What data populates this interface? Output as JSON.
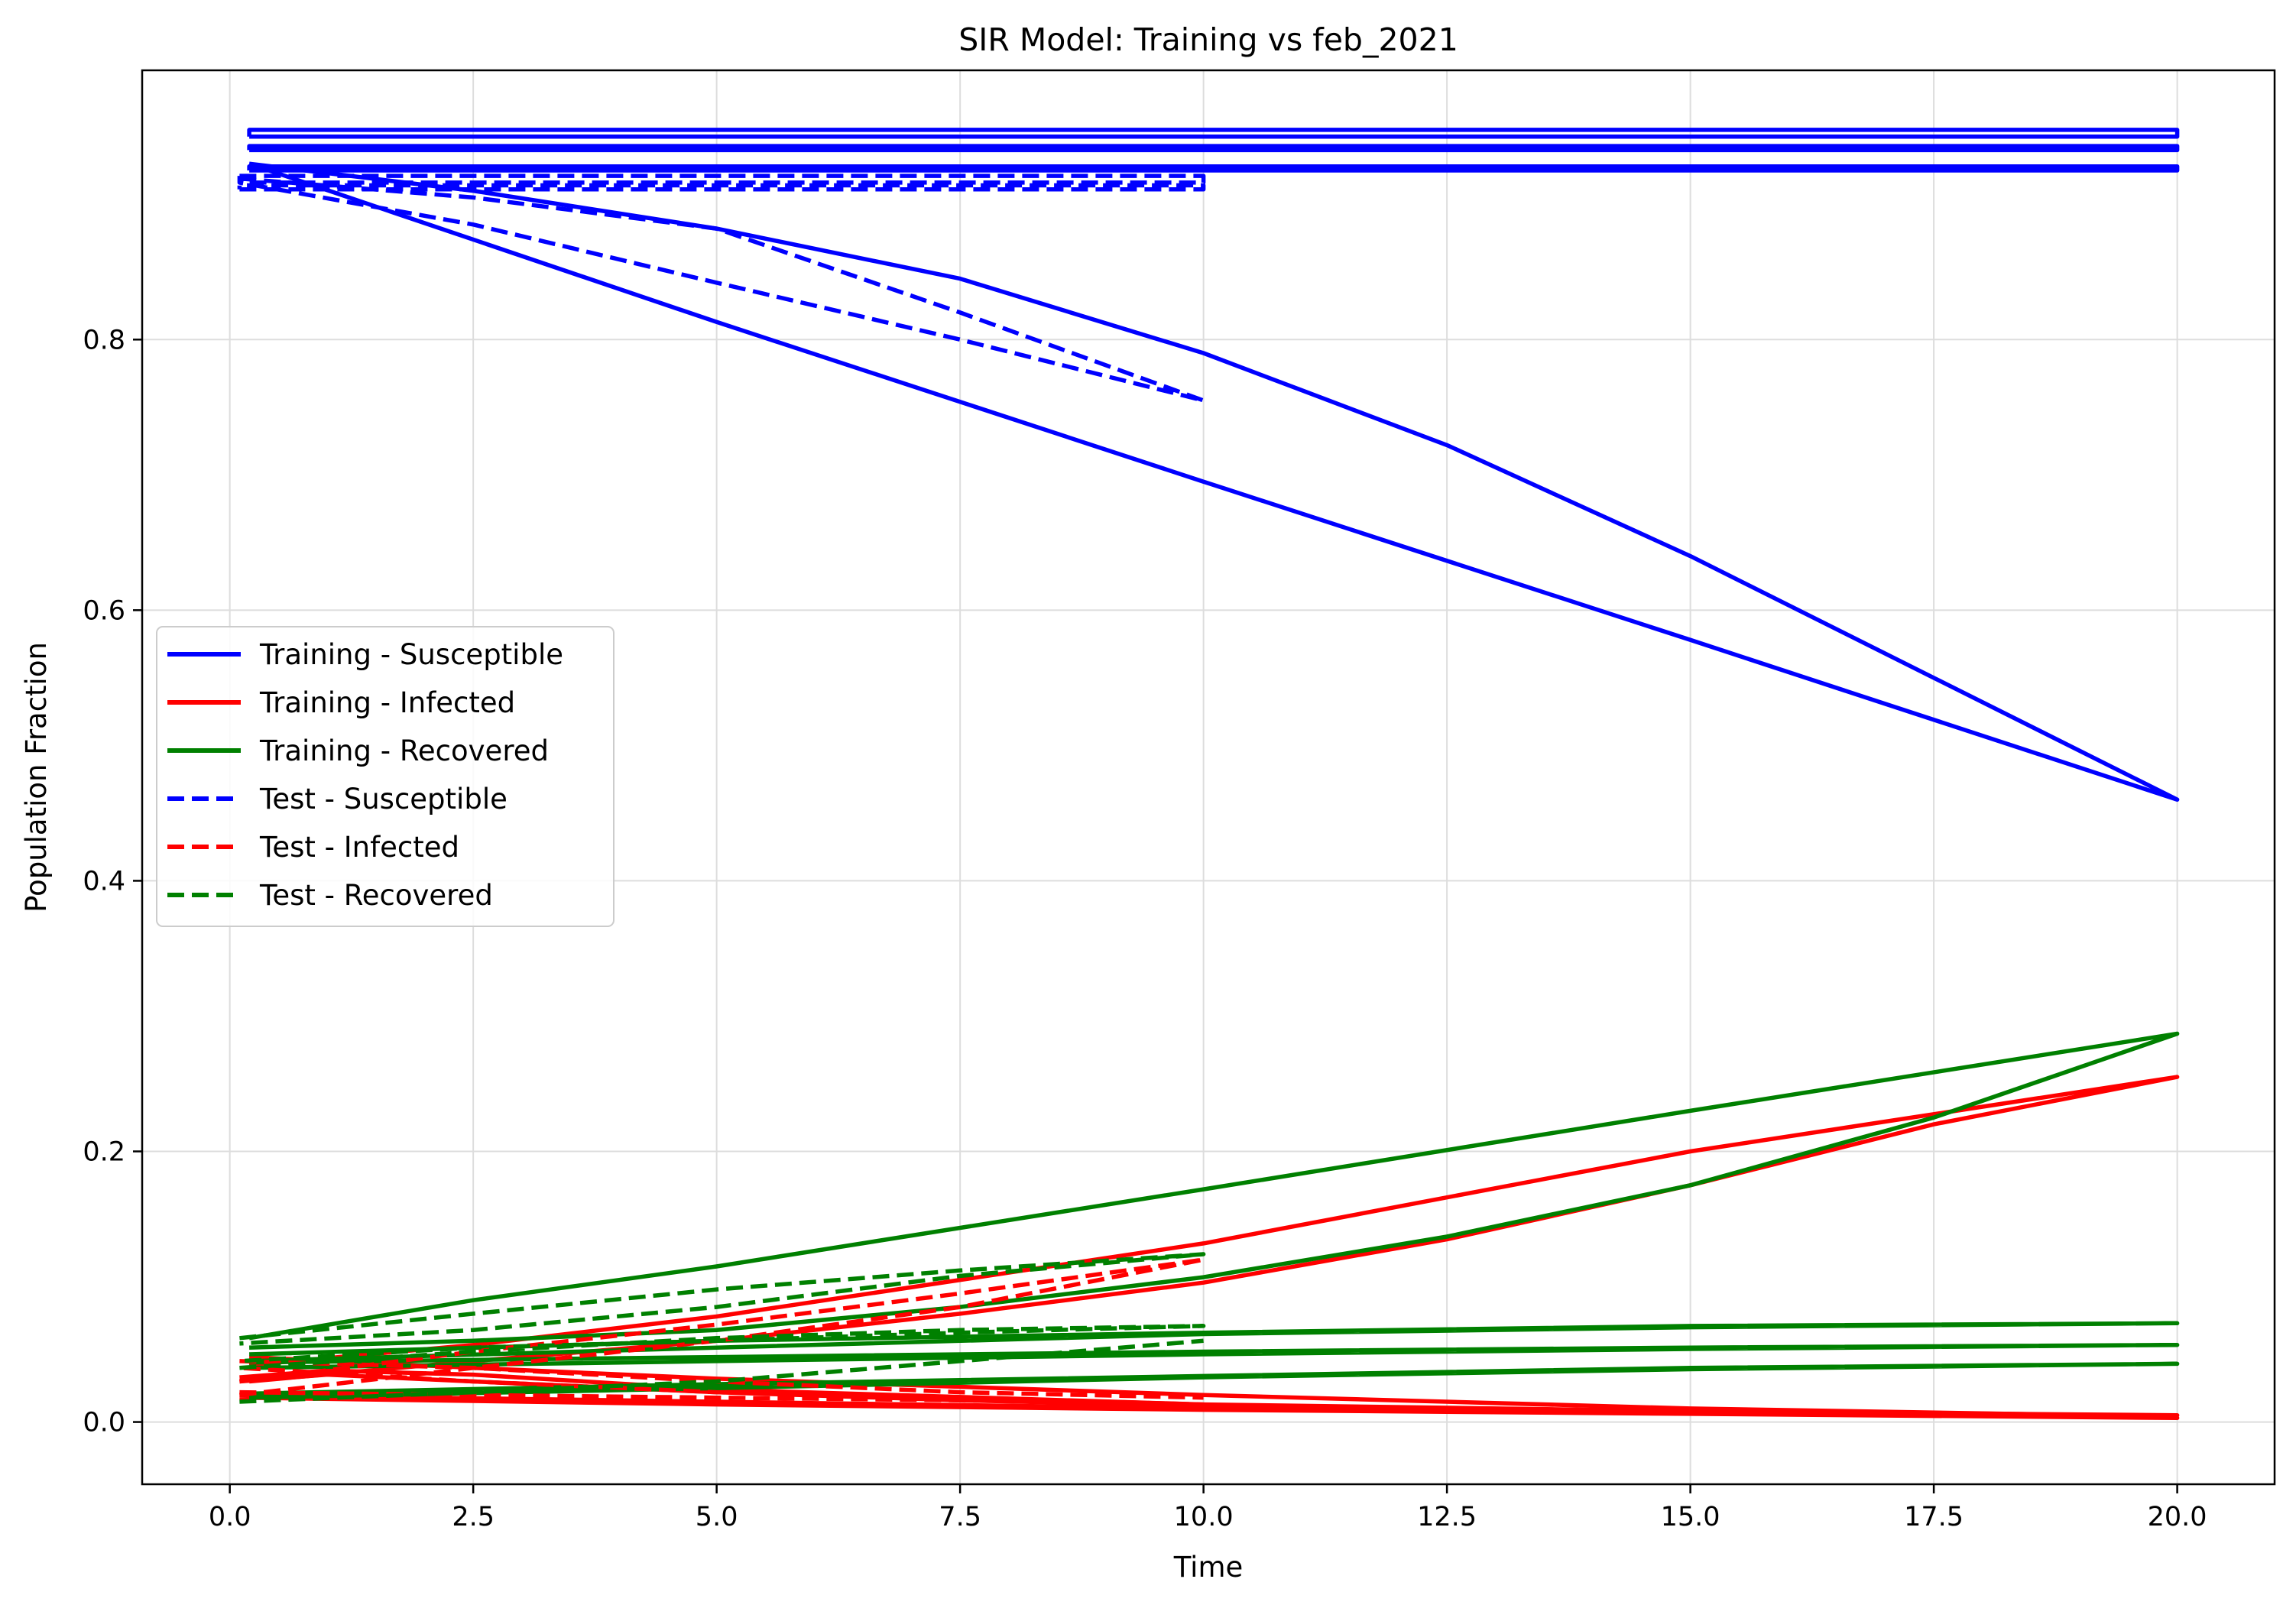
{
  "chart_data": {
    "type": "line",
    "title": "SIR Model: Training vs feb_2021",
    "xlabel": "Time",
    "ylabel": "Population Fraction",
    "xlim": [
      -0.9,
      21.0
    ],
    "ylim": [
      -0.046,
      0.999
    ],
    "xticks": [
      "0.0",
      "2.5",
      "5.0",
      "7.5",
      "10.0",
      "12.5",
      "15.0",
      "17.5",
      "20.0"
    ],
    "xtick_values": [
      0,
      2.5,
      5,
      7.5,
      10,
      12.5,
      15,
      17.5,
      20
    ],
    "yticks": [
      "0.0",
      "0.2",
      "0.4",
      "0.6",
      "0.8"
    ],
    "ytick_values": [
      0,
      0.2,
      0.4,
      0.6,
      0.8
    ],
    "grid": true,
    "legend_position": "center-left",
    "colors": {
      "susceptible": "#0000ff",
      "infected": "#ff0000",
      "recovered": "#008000"
    },
    "legend": [
      {
        "label": "Training - Susceptible",
        "color": "#0000ff",
        "style": "solid"
      },
      {
        "label": "Training - Infected",
        "color": "#ff0000",
        "style": "solid"
      },
      {
        "label": "Training - Recovered",
        "color": "#008000",
        "style": "solid"
      },
      {
        "label": "Test - Susceptible",
        "color": "#0000ff",
        "style": "dashed"
      },
      {
        "label": "Test - Infected",
        "color": "#ff0000",
        "style": "dashed"
      },
      {
        "label": "Test - Recovered",
        "color": "#008000",
        "style": "dashed"
      }
    ],
    "series": [
      {
        "group": "Training",
        "compartment": "Susceptible",
        "color": "#0000ff",
        "style": "solid",
        "points": [
          [
            0.2,
            0.95
          ],
          [
            0.2,
            0.955
          ],
          [
            20,
            0.955
          ],
          [
            20,
            0.95
          ],
          [
            0.2,
            0.95
          ]
        ]
      },
      {
        "group": "Training",
        "compartment": "Susceptible",
        "color": "#0000ff",
        "style": "solid",
        "points": [
          [
            0.2,
            0.94
          ],
          [
            0.2,
            0.943
          ],
          [
            20,
            0.943
          ],
          [
            20,
            0.94
          ],
          [
            0.2,
            0.94
          ]
        ]
      },
      {
        "group": "Training",
        "compartment": "Susceptible",
        "color": "#0000ff",
        "style": "solid",
        "points": [
          [
            0.2,
            0.925
          ],
          [
            0.2,
            0.928
          ],
          [
            20,
            0.928
          ],
          [
            20,
            0.925
          ],
          [
            0.2,
            0.925
          ]
        ]
      },
      {
        "group": "Training",
        "compartment": "Susceptible",
        "color": "#0000ff",
        "style": "solid",
        "points": [
          [
            0.2,
            0.93
          ],
          [
            2.5,
            0.91
          ],
          [
            5,
            0.882
          ],
          [
            7.5,
            0.845
          ],
          [
            10,
            0.79
          ],
          [
            12.5,
            0.722
          ],
          [
            15,
            0.64
          ],
          [
            17.5,
            0.55
          ],
          [
            20,
            0.46
          ],
          [
            15,
            0.578
          ],
          [
            10,
            0.695
          ],
          [
            5,
            0.813
          ],
          [
            0.2,
            0.93
          ]
        ]
      },
      {
        "group": "Training",
        "compartment": "Infected",
        "color": "#ff0000",
        "style": "solid",
        "points": [
          [
            0.1,
            0.018
          ],
          [
            5,
            0.013
          ],
          [
            10,
            0.009
          ],
          [
            15,
            0.006
          ],
          [
            20,
            0.003
          ],
          [
            15,
            0.006
          ],
          [
            10,
            0.01
          ],
          [
            5,
            0.015
          ],
          [
            0.1,
            0.02
          ]
        ]
      },
      {
        "group": "Training",
        "compartment": "Infected",
        "color": "#ff0000",
        "style": "solid",
        "points": [
          [
            0.1,
            0.03
          ],
          [
            1,
            0.035
          ],
          [
            2.5,
            0.03
          ],
          [
            5,
            0.022
          ],
          [
            7.5,
            0.016
          ],
          [
            10,
            0.012
          ],
          [
            15,
            0.007
          ],
          [
            20,
            0.005
          ],
          [
            15,
            0.008
          ],
          [
            10,
            0.013
          ],
          [
            5,
            0.024
          ],
          [
            2.5,
            0.035
          ],
          [
            1,
            0.038
          ],
          [
            0.1,
            0.033
          ]
        ]
      },
      {
        "group": "Training",
        "compartment": "Infected",
        "color": "#ff0000",
        "style": "solid",
        "points": [
          [
            0.2,
            0.048
          ],
          [
            2.5,
            0.04
          ],
          [
            5,
            0.032
          ],
          [
            10,
            0.02
          ],
          [
            15,
            0.01
          ],
          [
            20,
            0.004
          ]
        ]
      },
      {
        "group": "Training",
        "compartment": "Infected",
        "color": "#ff0000",
        "style": "solid",
        "points": [
          [
            0.2,
            0.03
          ],
          [
            2.5,
            0.045
          ],
          [
            5,
            0.06
          ],
          [
            7.5,
            0.08
          ],
          [
            10,
            0.103
          ],
          [
            12.5,
            0.135
          ],
          [
            15,
            0.175
          ],
          [
            17.5,
            0.22
          ],
          [
            20,
            0.255
          ],
          [
            15,
            0.2
          ],
          [
            10,
            0.132
          ],
          [
            5,
            0.078
          ],
          [
            2.5,
            0.057
          ],
          [
            0.2,
            0.042
          ]
        ]
      },
      {
        "group": "Training",
        "compartment": "Recovered",
        "color": "#008000",
        "style": "solid",
        "points": [
          [
            0.2,
            0.045
          ],
          [
            5,
            0.055
          ],
          [
            10,
            0.065
          ],
          [
            15,
            0.07
          ],
          [
            20,
            0.073
          ],
          [
            15,
            0.071
          ],
          [
            10,
            0.066
          ],
          [
            5,
            0.06
          ],
          [
            0.2,
            0.05
          ]
        ]
      },
      {
        "group": "Training",
        "compartment": "Recovered",
        "color": "#008000",
        "style": "solid",
        "points": [
          [
            0.2,
            0.04
          ],
          [
            5,
            0.045
          ],
          [
            10,
            0.05
          ],
          [
            15,
            0.054
          ],
          [
            20,
            0.057
          ],
          [
            15,
            0.055
          ],
          [
            10,
            0.052
          ],
          [
            5,
            0.048
          ],
          [
            0.2,
            0.044
          ]
        ]
      },
      {
        "group": "Training",
        "compartment": "Recovered",
        "color": "#008000",
        "style": "solid",
        "points": [
          [
            0.2,
            0.018
          ],
          [
            5,
            0.025
          ],
          [
            10,
            0.033
          ],
          [
            15,
            0.039
          ],
          [
            20,
            0.043
          ],
          [
            15,
            0.04
          ],
          [
            10,
            0.034
          ],
          [
            5,
            0.028
          ],
          [
            0.2,
            0.021
          ]
        ]
      },
      {
        "group": "Training",
        "compartment": "Recovered",
        "color": "#008000",
        "style": "solid",
        "points": [
          [
            0.2,
            0.055
          ],
          [
            2.5,
            0.06
          ],
          [
            5,
            0.068
          ],
          [
            7.5,
            0.085
          ],
          [
            10,
            0.107
          ],
          [
            12.5,
            0.137
          ],
          [
            15,
            0.175
          ],
          [
            17.5,
            0.225
          ],
          [
            20,
            0.287
          ],
          [
            15,
            0.23
          ],
          [
            10,
            0.172
          ],
          [
            5,
            0.115
          ],
          [
            2.5,
            0.09
          ],
          [
            0.2,
            0.062
          ]
        ]
      },
      {
        "group": "Test",
        "compartment": "Susceptible",
        "color": "#0000ff",
        "style": "dashed",
        "points": [
          [
            0.1,
            0.921
          ],
          [
            10,
            0.921
          ],
          [
            10,
            0.916
          ],
          [
            0.1,
            0.916
          ],
          [
            0.1,
            0.921
          ]
        ]
      },
      {
        "group": "Test",
        "compartment": "Susceptible",
        "color": "#0000ff",
        "style": "dashed",
        "points": [
          [
            0.1,
            0.911
          ],
          [
            10,
            0.911
          ],
          [
            10,
            0.914
          ],
          [
            0.1,
            0.914
          ],
          [
            0.1,
            0.911
          ]
        ]
      },
      {
        "group": "Test",
        "compartment": "Susceptible",
        "color": "#0000ff",
        "style": "dashed",
        "points": [
          [
            0.1,
            0.919
          ],
          [
            2.5,
            0.905
          ],
          [
            5,
            0.882
          ],
          [
            7.5,
            0.82
          ],
          [
            10,
            0.755
          ],
          [
            7.5,
            0.8
          ],
          [
            5,
            0.842
          ],
          [
            2.5,
            0.885
          ],
          [
            0.1,
            0.916
          ]
        ]
      },
      {
        "group": "Test",
        "compartment": "Infected",
        "color": "#ff0000",
        "style": "dashed",
        "points": [
          [
            0.1,
            0.022
          ],
          [
            2.5,
            0.02
          ],
          [
            5,
            0.018
          ],
          [
            7.5,
            0.016
          ],
          [
            10,
            0.013
          ],
          [
            7.5,
            0.018
          ],
          [
            5,
            0.022
          ],
          [
            2.5,
            0.03
          ],
          [
            0.1,
            0.04
          ]
        ]
      },
      {
        "group": "Test",
        "compartment": "Infected",
        "color": "#ff0000",
        "style": "dashed",
        "points": [
          [
            0.1,
            0.045
          ],
          [
            2.5,
            0.04
          ],
          [
            5,
            0.03
          ],
          [
            7.5,
            0.022
          ],
          [
            10,
            0.018
          ]
        ]
      },
      {
        "group": "Test",
        "compartment": "Infected",
        "color": "#ff0000",
        "style": "dashed",
        "points": [
          [
            0.1,
            0.02
          ],
          [
            2.5,
            0.04
          ],
          [
            5,
            0.06
          ],
          [
            7.5,
            0.085
          ],
          [
            10,
            0.12
          ],
          [
            7.5,
            0.095
          ],
          [
            5,
            0.072
          ],
          [
            2.5,
            0.052
          ],
          [
            0.1,
            0.03
          ]
        ]
      },
      {
        "group": "Test",
        "compartment": "Recovered",
        "color": "#008000",
        "style": "dashed",
        "points": [
          [
            0.1,
            0.04
          ],
          [
            2.5,
            0.052
          ],
          [
            5,
            0.062
          ],
          [
            7.5,
            0.068
          ],
          [
            10,
            0.071
          ],
          [
            7.5,
            0.066
          ],
          [
            5,
            0.06
          ],
          [
            2.5,
            0.055
          ],
          [
            0.1,
            0.045
          ]
        ]
      },
      {
        "group": "Test",
        "compartment": "Recovered",
        "color": "#008000",
        "style": "dashed",
        "points": [
          [
            0.1,
            0.015
          ],
          [
            2.5,
            0.022
          ],
          [
            5,
            0.03
          ],
          [
            7.5,
            0.045
          ],
          [
            10,
            0.06
          ]
        ]
      },
      {
        "group": "Test",
        "compartment": "Recovered",
        "color": "#008000",
        "style": "dashed",
        "points": [
          [
            0.1,
            0.062
          ],
          [
            2.5,
            0.08
          ],
          [
            5,
            0.098
          ],
          [
            7.5,
            0.112
          ],
          [
            10,
            0.124
          ],
          [
            7.5,
            0.108
          ],
          [
            5,
            0.085
          ],
          [
            2.5,
            0.068
          ],
          [
            0.1,
            0.058
          ]
        ]
      }
    ]
  }
}
